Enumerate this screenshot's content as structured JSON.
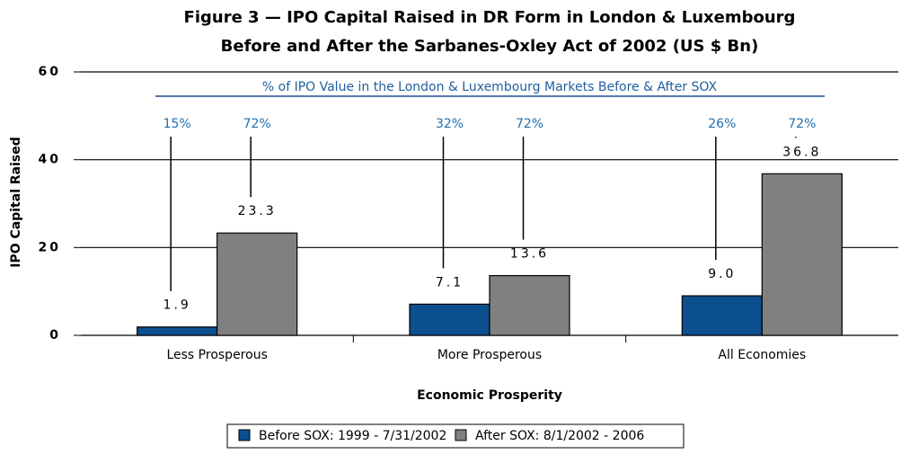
{
  "chart_data": {
    "type": "bar",
    "title": "Figure 3 — IPO Capital Raised in DR Form in London & Luxembourg",
    "subtitle": "Before and After the Sarbanes-Oxley Act of 2002 (US $ Bn)",
    "annotation": "% of IPO Value in the London & Luxembourg Markets Before & After SOX",
    "x_label": "Economic Prosperity",
    "y_label": "IPO Capital Raised",
    "categories": [
      "Less Prosperous",
      "More Prosperous",
      "All Economies"
    ],
    "series": [
      {
        "name": "Before SOX: 1999 - 7/31/2002",
        "color": "#0b4f8f",
        "values": [
          1.9,
          7.1,
          9.0
        ],
        "value_labels": [
          "1.9",
          "7.1",
          "9.0"
        ],
        "annotations": [
          "15%",
          "32%",
          "26%"
        ]
      },
      {
        "name": "After SOX: 8/1/2002 - 2006",
        "color": "#808080",
        "values": [
          23.3,
          13.6,
          36.8
        ],
        "value_labels": [
          "23.3",
          "13.6",
          "36.8"
        ],
        "annotations": [
          "72%",
          "72%",
          "72%"
        ]
      }
    ],
    "ylim": [
      0,
      60
    ],
    "yticks": [
      0,
      20,
      40,
      60
    ],
    "grid": true,
    "legend": "bottom"
  }
}
